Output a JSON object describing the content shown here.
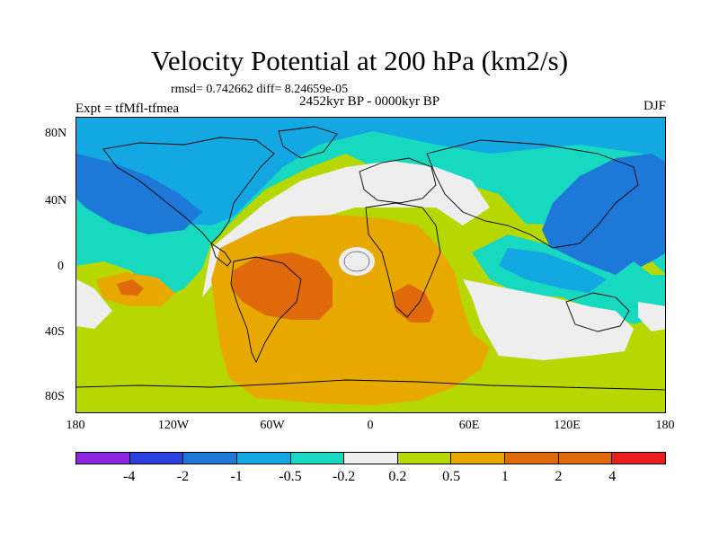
{
  "title": "Velocity Potential at 200 hPa (km2/s)",
  "stats": "rmsd= 0.742662 diff= 8.24659e-05",
  "period": "2452kyr BP - 0000kyr BP",
  "experiment": "Expt = tfMfl-tfmea",
  "season": "DJF",
  "lat_labels": [
    "80N",
    "40N",
    "0",
    "40S",
    "80S"
  ],
  "lon_labels": [
    "180",
    "120W",
    "60W",
    "0",
    "60E",
    "120E",
    "180"
  ],
  "colorbar": {
    "labels": [
      "-4",
      "-2",
      "-1",
      "-0.5",
      "-0.2",
      "0.2",
      "0.5",
      "1",
      "2",
      "4"
    ],
    "colors": [
      "#8b25e0",
      "#2b3ede",
      "#1e78d8",
      "#13a8e2",
      "#17d9c0",
      "#eeeeee",
      "#b7d700",
      "#e7a800",
      "#e06a0b",
      "#e81e1e"
    ]
  },
  "field_colors": {
    "neg_strong": "#1e78d8",
    "neg_mid": "#13a8e2",
    "neg_weak": "#17d9c0",
    "neutral": "#eeeeee",
    "pos_weak": "#b7d700",
    "pos_mid": "#e7a800",
    "pos_strong": "#e06a0b"
  }
}
